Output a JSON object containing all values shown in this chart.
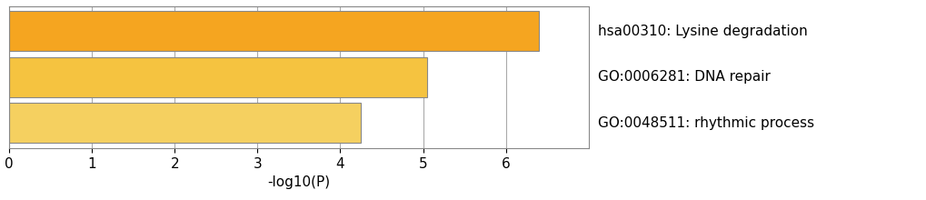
{
  "categories": [
    "hsa00310: Lysine degradation",
    "GO:0006281: DNA repair",
    "GO:0048511: rhythmic process"
  ],
  "values": [
    6.4,
    5.05,
    4.25
  ],
  "bar_colors": [
    "#F5A520",
    "#F5C340",
    "#F5D060"
  ],
  "xlim": [
    0,
    7
  ],
  "xticks": [
    0,
    1,
    2,
    3,
    4,
    5,
    6
  ],
  "xlabel": "-log10(P)",
  "legend_labels": [
    "hsa00310: Lysine degradation",
    "GO:0006281: DNA repair",
    "GO:0048511: rhythmic process"
  ],
  "figsize": [
    10.2,
    2.2
  ],
  "dpi": 100,
  "bar_height": 0.88,
  "background_color": "#ffffff",
  "grid_color": "#aaaaaa",
  "edge_color": "#888888",
  "label_fontsize": 11,
  "tick_fontsize": 11,
  "xlabel_fontsize": 11
}
